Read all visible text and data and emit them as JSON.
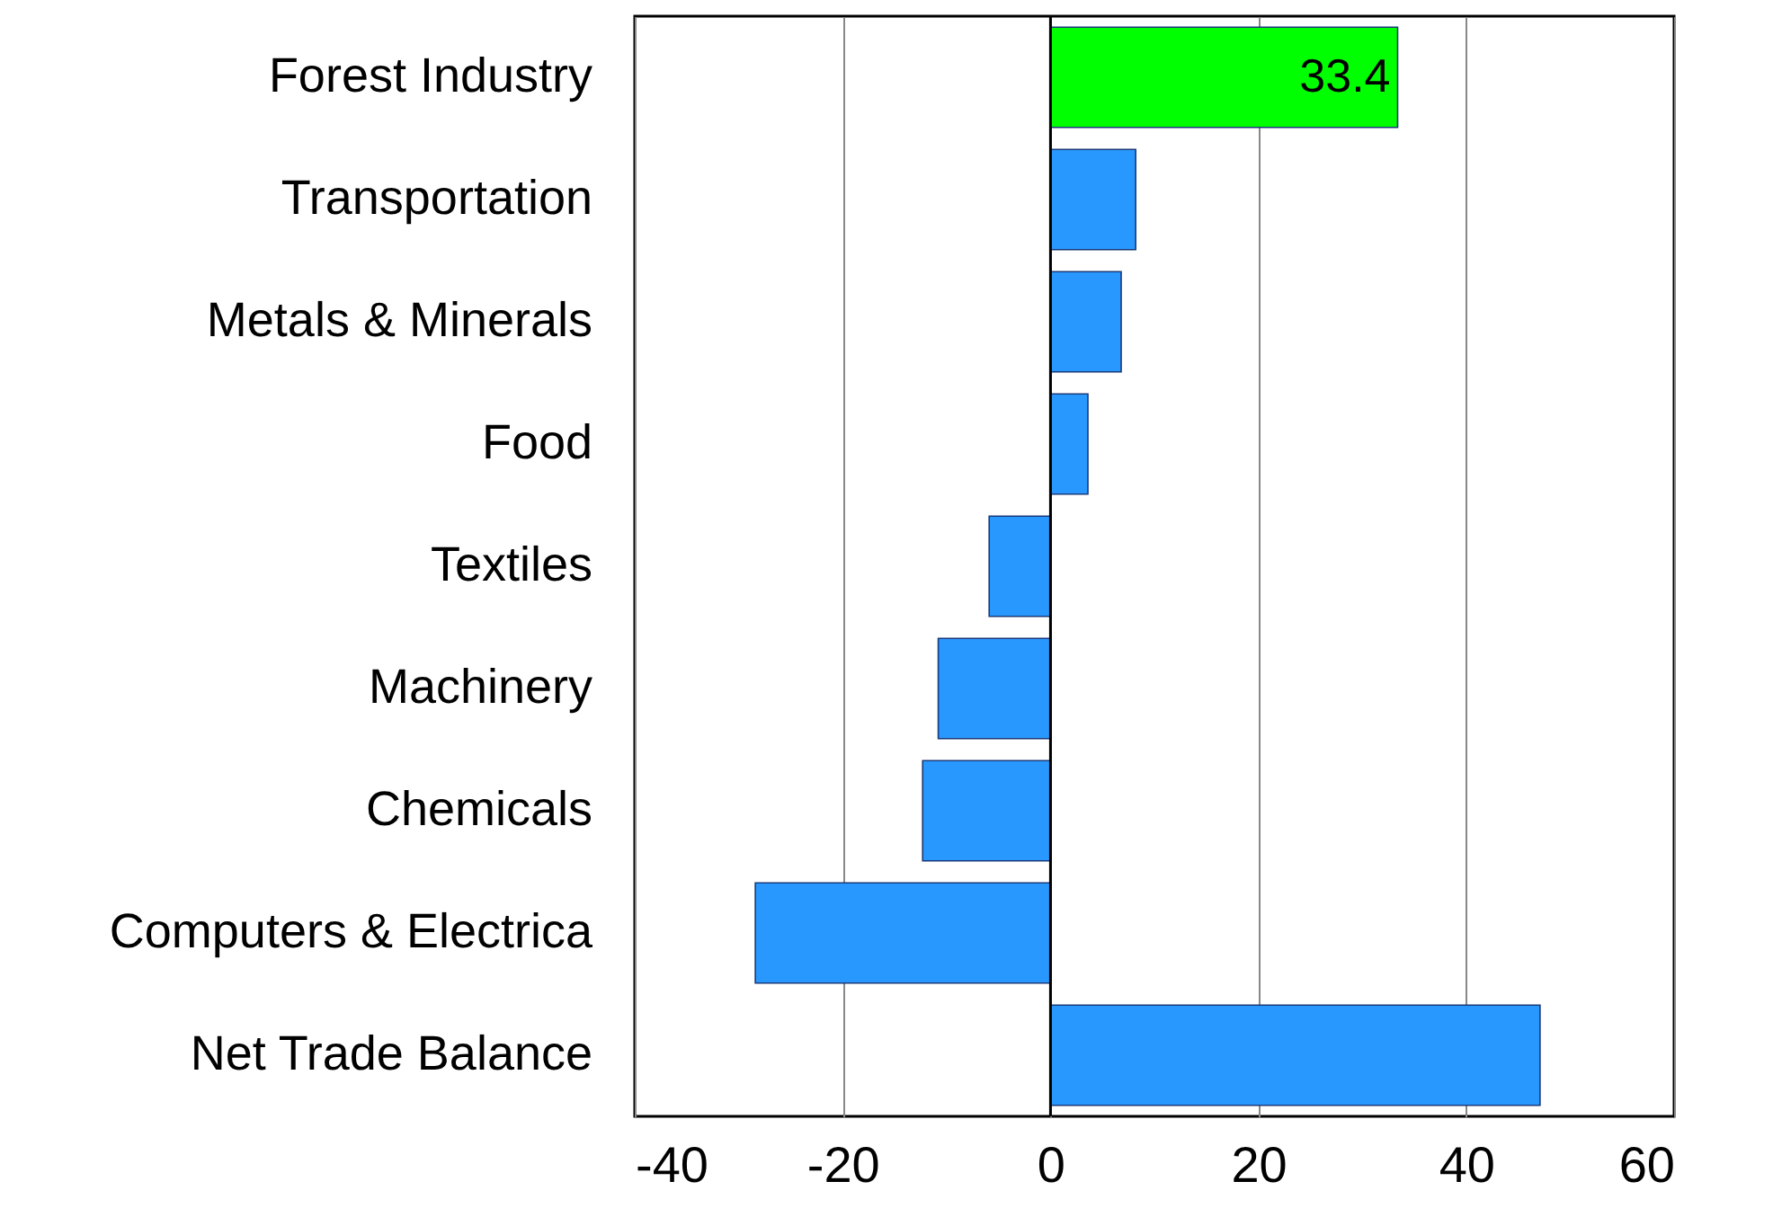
{
  "chart_data": {
    "type": "bar",
    "orientation": "horizontal",
    "categories": [
      "Forest Industry",
      "Transportation",
      "Metals & Minerals",
      "Food",
      "Textiles",
      "Machinery",
      "Chemicals",
      "Computers & Electrica",
      "Net Trade Balance"
    ],
    "values": [
      33.4,
      8.2,
      6.8,
      3.6,
      -5.9,
      -10.8,
      -12.3,
      -28.4,
      47.1
    ],
    "colors": [
      "#00ff00",
      "#2898ff",
      "#2898ff",
      "#2898ff",
      "#2898ff",
      "#2898ff",
      "#2898ff",
      "#2898ff",
      "#2898ff"
    ],
    "value_labels": [
      "33.4",
      null,
      null,
      null,
      null,
      null,
      null,
      null,
      null
    ],
    "xlim": [
      -40,
      60
    ],
    "xticks": [
      -40,
      -20,
      0,
      20,
      40,
      60
    ],
    "grid": "x"
  }
}
